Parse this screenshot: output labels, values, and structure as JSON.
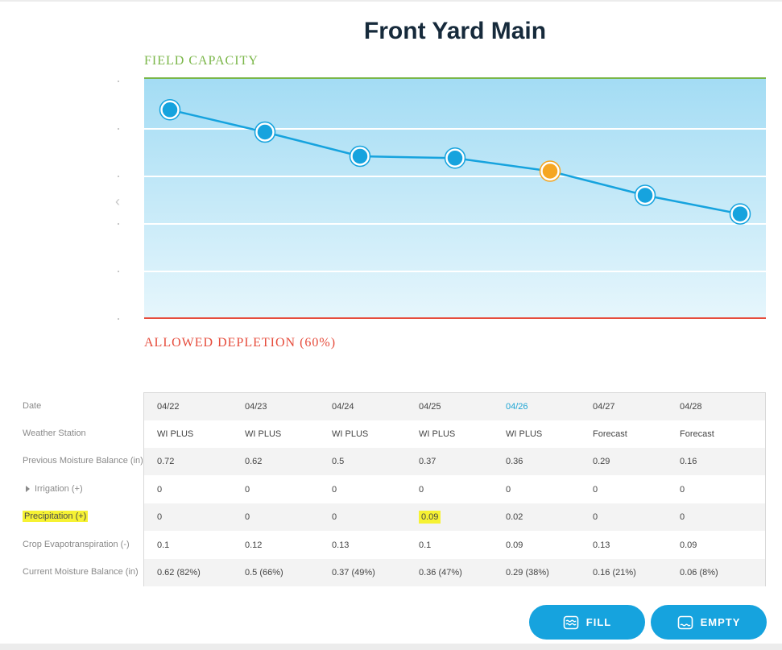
{
  "title": "Front Yard Main",
  "field_capacity_label": "FIELD CAPACITY",
  "allowed_depletion_label": "ALLOWED DEPLETION (60%)",
  "colors": {
    "field_capacity": "#7ab648",
    "allowed_depletion": "#e64c3c",
    "line": "#16a3de",
    "point": "#16a3de",
    "point_today": "#f5a623",
    "accent": "#16a3de"
  },
  "chart_data": {
    "type": "line",
    "x": [
      "04/22",
      "04/23",
      "04/24",
      "04/25",
      "04/26",
      "04/27",
      "04/28"
    ],
    "series": [
      {
        "values": [
          0.62,
          0.5,
          0.37,
          0.36,
          0.29,
          0.16,
          0.06
        ]
      }
    ],
    "highlight_index": 4,
    "ylim": [
      -0.5,
      0.79
    ],
    "grid": true,
    "title": "",
    "xlabel": "",
    "ylabel": ""
  },
  "table": {
    "active_column": 4,
    "rows": [
      {
        "label": "Date",
        "cells": [
          "04/22",
          "04/23",
          "04/24",
          "04/25",
          "04/26",
          "04/27",
          "04/28"
        ]
      },
      {
        "label": "Weather Station",
        "cells": [
          "WI PLUS",
          "WI PLUS",
          "WI PLUS",
          "WI PLUS",
          "WI PLUS",
          "Forecast",
          "Forecast"
        ]
      },
      {
        "label": "Previous Moisture Balance (in)",
        "cells": [
          "0.72",
          "0.62",
          "0.5",
          "0.37",
          "0.36",
          "0.29",
          "0.16"
        ]
      },
      {
        "label": "Irrigation (+)",
        "expandable": true,
        "cells": [
          "0",
          "0",
          "0",
          "0",
          "0",
          "0",
          "0"
        ]
      },
      {
        "label": "Precipitation (+)",
        "highlight_label": true,
        "highlight_cell": 3,
        "cells": [
          "0",
          "0",
          "0",
          "0.09",
          "0.02",
          "0",
          "0"
        ]
      },
      {
        "label": "Crop Evapotranspiration (-)",
        "cells": [
          "0.1",
          "0.12",
          "0.13",
          "0.1",
          "0.09",
          "0.13",
          "0.09"
        ]
      },
      {
        "label": "Current Moisture Balance (in)",
        "cells": [
          "0.62 (82%)",
          "0.5 (66%)",
          "0.37 (49%)",
          "0.36 (47%)",
          "0.29 (38%)",
          "0.16 (21%)",
          "0.06 (8%)"
        ]
      }
    ]
  },
  "prev_icon": "chevron-left-icon",
  "buttons": {
    "fill": {
      "label": "FILL",
      "icon": "water-waves-icon"
    },
    "empty": {
      "label": "EMPTY",
      "icon": "empty-container-icon"
    }
  }
}
